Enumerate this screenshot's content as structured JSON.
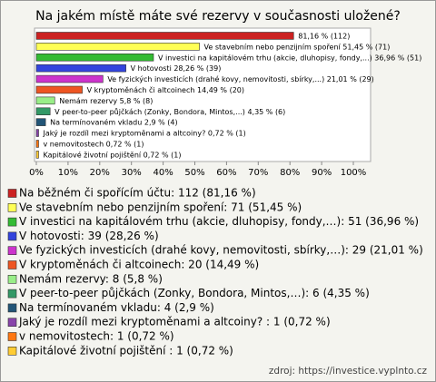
{
  "chart_data": {
    "type": "bar",
    "orientation": "horizontal",
    "title": "Na jakém místě máte své rezervy v současnosti uložené?",
    "categories": [
      "Na běžném či spořícím účtu",
      "Ve stavebním nebo penzijním spoření",
      "V investici na kapitálovém trhu (akcie, dluhopisy, fondy,…)",
      "V hotovosti",
      "Ve fyzických investicích (drahé kovy, nemovitosti, sbírky,…)",
      "V kryptoměnách či altcoinech",
      "Nemám rezervy",
      "V peer-to-peer půjčkách (Zonky, Bondora, Mintos,…)",
      "Na termínovaném vkladu",
      "Jaký je rozdíl mezi kryptoměnami a altcoiny?",
      "v nemovitostech",
      "Kapitálové životní pojištění"
    ],
    "values": [
      81.16,
      51.45,
      36.96,
      28.26,
      21.01,
      14.49,
      5.8,
      4.35,
      2.9,
      0.72,
      0.72,
      0.72
    ],
    "value_labels": [
      "81,16 % (112)",
      "Ve stavebním nebo penzijním spoření 51,45 % (71)",
      "V investici na kapitálovém trhu (akcie, dluhopisy, fondy,...) 36,96 % (51)",
      "V hotovosti 28,26 % (39)",
      "Ve fyzických investicích (drahé kovy, nemovitosti, sbírky,...) 21,01 % (29)",
      "V kryptoměnách či altcoinech 14,49 % (20)",
      "Nemám rezervy 5,8 % (8)",
      "V peer-to-peer půjčkách (Zonky, Bondora, Mintos,...) 4,35 % (6)",
      "Na termínovaném vkladu 2,9 % (4)",
      "Jaký je rozdíl mezi kryptoměnami a altcoiny?  0,72 % (1)",
      "v nemovitostech 0,72 % (1)",
      "Kapitálové životní pojištění  0,72 % (1)"
    ],
    "legend_labels": [
      "Na běžném či spořícím účtu: 112 (81,16 %)",
      "Ve stavebním nebo penzijním spoření: 71 (51,45 %)",
      "V investici na kapitálovém trhu (akcie, dluhopisy, fondy,…): 51 (36,96 %)",
      "V hotovosti: 39 (28,26 %)",
      "Ve fyzických investicích (drahé kovy, nemovitosti, sbírky,…): 29 (21,01 %)",
      "V kryptoměnách či altcoinech: 20 (14,49 %)",
      "Nemám rezervy: 8 (5,8 %)",
      "V peer-to-peer půjčkách (Zonky, Bondora, Mintos,…): 6 (4,35 %)",
      "Na termínovaném vkladu: 4 (2,9 %)",
      "Jaký je rozdíl mezi kryptoměnami a altcoiny? : 1 (0,72 %)",
      "v nemovitostech: 1 (0,72 %)",
      "Kapitálové životní pojištění : 1 (0,72 %)"
    ],
    "colors": [
      "#cc2222",
      "#ffff55",
      "#33bb33",
      "#3344dd",
      "#cc33cc",
      "#ee5522",
      "#99ee88",
      "#339966",
      "#225577",
      "#8844aa",
      "#ff7711",
      "#ffcc33"
    ],
    "xlim": [
      0,
      100
    ],
    "xticks": [
      {
        "value": 0,
        "label": "0%"
      },
      {
        "value": 10,
        "label": "10%"
      },
      {
        "value": 20,
        "label": "20%"
      },
      {
        "value": 30,
        "label": "30%"
      },
      {
        "value": 40,
        "label": "40%"
      },
      {
        "value": 50,
        "label": "50%"
      },
      {
        "value": 60,
        "label": "60%"
      },
      {
        "value": 70,
        "label": "70%"
      },
      {
        "value": 80,
        "label": "80%"
      },
      {
        "value": 90,
        "label": "90%"
      },
      {
        "value": 100,
        "label": "100%"
      }
    ],
    "source": "zdroj: https://investice.vyplnto.cz"
  }
}
